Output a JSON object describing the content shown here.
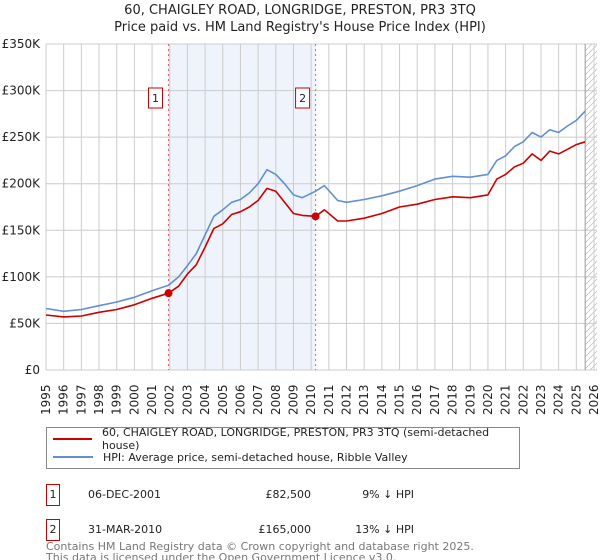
{
  "title": "60, CHAIGLEY ROAD, LONGRIDGE, PRESTON, PR3 3TQ",
  "subtitle": "Price paid vs. HM Land Registry's House Price Index (HPI)",
  "colors": {
    "property": "#cc0000",
    "hpi": "#6090d0",
    "shade": "#eef3fc"
  },
  "chart_data": {
    "type": "line",
    "title": "60, CHAIGLEY ROAD, LONGRIDGE, PRESTON, PR3 3TQ — Price paid vs. HM Land Registry's House Price Index (HPI)",
    "xlabel": "",
    "ylabel": "",
    "xlim": [
      1995,
      2026
    ],
    "ylim": [
      0,
      350000
    ],
    "grid": true,
    "y_ticks": [
      {
        "v": 0,
        "label": "£0"
      },
      {
        "v": 50,
        "label": "£50K"
      },
      {
        "v": 100,
        "label": "£100K"
      },
      {
        "v": 150,
        "label": "£150K"
      },
      {
        "v": 200,
        "label": "£200K"
      },
      {
        "v": 250,
        "label": "£250K"
      },
      {
        "v": 300,
        "label": "£300K"
      },
      {
        "v": 350,
        "label": "£350K"
      }
    ],
    "x_ticks": [
      "1995",
      "1996",
      "1997",
      "1998",
      "1999",
      "2000",
      "2001",
      "2002",
      "2003",
      "2004",
      "2005",
      "2006",
      "2007",
      "2008",
      "2009",
      "2010",
      "2011",
      "2012",
      "2013",
      "2014",
      "2015",
      "2016",
      "2017",
      "2018",
      "2019",
      "2020",
      "2021",
      "2022",
      "2023",
      "2024",
      "2025",
      "2026"
    ],
    "x": [
      1995,
      1996,
      1997,
      1998,
      1999,
      2000,
      2001,
      2001.93,
      2002.5,
      2003,
      2003.5,
      2004,
      2004.5,
      2005,
      2005.5,
      2006,
      2006.5,
      2007,
      2007.5,
      2008,
      2008.5,
      2009,
      2009.5,
      2010.25,
      2010.75,
      2011.5,
      2012,
      2013,
      2014,
      2015,
      2016,
      2017,
      2018,
      2019,
      2020,
      2020.5,
      2021,
      2021.5,
      2022,
      2022.5,
      2023,
      2023.5,
      2024,
      2024.5,
      2025,
      2025.5
    ],
    "series": [
      {
        "name": "60, CHAIGLEY ROAD, LONGRIDGE, PRESTON, PR3 3TQ (semi-detached house)",
        "unit": "£K",
        "values": [
          59,
          57,
          58,
          62,
          65,
          70,
          77,
          82.5,
          90,
          103,
          113,
          132,
          152,
          157,
          167,
          170,
          175,
          182,
          195,
          192,
          180,
          168,
          166,
          165,
          172,
          160,
          160,
          163,
          168,
          175,
          178,
          183,
          186,
          185,
          188,
          205,
          210,
          218,
          222,
          232,
          225,
          235,
          232,
          237,
          242,
          245
        ]
      },
      {
        "name": "HPI: Average price, semi-detached house, Ribble Valley",
        "unit": "£K",
        "values": [
          66,
          63,
          65,
          69,
          73,
          78,
          85,
          91,
          100,
          112,
          125,
          145,
          165,
          172,
          180,
          183,
          190,
          200,
          215,
          210,
          200,
          188,
          185,
          192,
          198,
          182,
          180,
          183,
          187,
          192,
          198,
          205,
          208,
          207,
          210,
          225,
          230,
          240,
          245,
          255,
          250,
          258,
          255,
          262,
          268,
          278
        ]
      }
    ],
    "shaded_range": [
      2001.93,
      2010.25
    ],
    "forecast_hatch_from": 2025.5,
    "annotations": [
      {
        "label": "1",
        "x": 2001.93,
        "y": 82.5
      },
      {
        "label": "2",
        "x": 2010.25,
        "y": 165
      }
    ]
  },
  "legend": {
    "property": "60, CHAIGLEY ROAD, LONGRIDGE, PRESTON, PR3 3TQ (semi-detached house)",
    "hpi": "HPI: Average price, semi-detached house, Ribble Valley"
  },
  "transactions": [
    {
      "num": "1",
      "date": "06-DEC-2001",
      "price": "£82,500",
      "hpi": "9% ↓ HPI"
    },
    {
      "num": "2",
      "date": "31-MAR-2010",
      "price": "£165,000",
      "hpi": "13% ↓ HPI"
    }
  ],
  "footer": {
    "line1": "Contains HM Land Registry data © Crown copyright and database right 2025.",
    "line2": "This data is licensed under the Open Government Licence v3.0."
  }
}
